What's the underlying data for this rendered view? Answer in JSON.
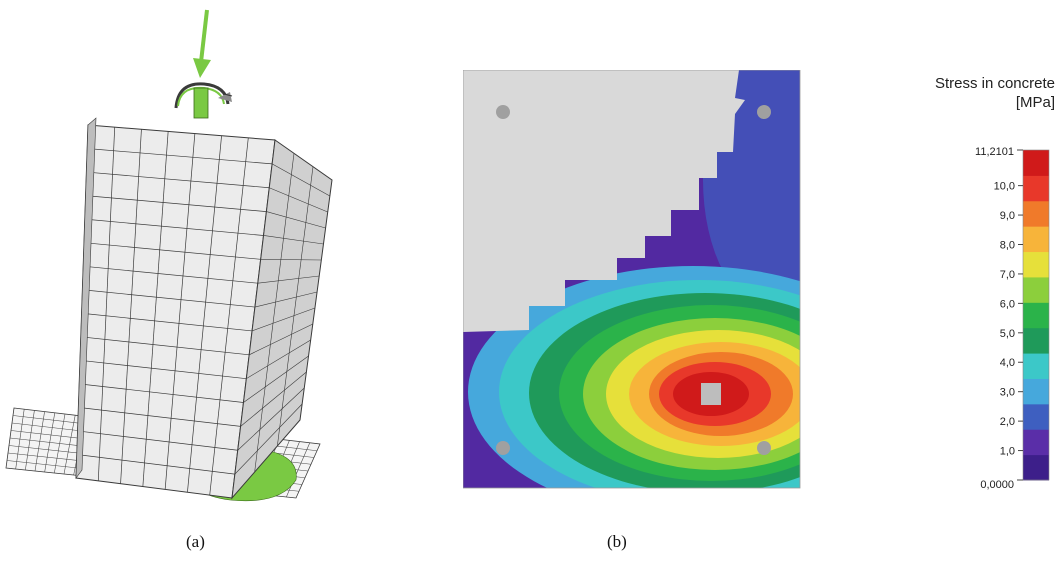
{
  "captions": {
    "a": "(a)",
    "b": "(b)"
  },
  "legend": {
    "title_line1": "Stress in concrete",
    "title_line2": "[MPa]",
    "max_label": "11,2101",
    "min_label": "0,0000",
    "min": 0,
    "max": 11.2101,
    "ticks": [
      "10,0",
      "9,0",
      "8,0",
      "7,0",
      "6,0",
      "5,0",
      "4,0",
      "3,0",
      "2,0",
      "1,0"
    ],
    "tick_values": [
      10,
      9,
      8,
      7,
      6,
      5,
      4,
      3,
      2,
      1
    ],
    "colors": [
      "#3d1f8a",
      "#5a2ea8",
      "#3e5fc0",
      "#46a8dc",
      "#3cc8c8",
      "#1f9a5a",
      "#2bb34a",
      "#8ccf3c",
      "#e6e03a",
      "#f7b43a",
      "#f07a2a",
      "#e8382a",
      "#d01a1a"
    ]
  },
  "colors": {
    "mesh": "#3a3a3a",
    "load": "#7ac943",
    "concrete": "#d9d9d9",
    "rebar": "#a0a0a0"
  }
}
